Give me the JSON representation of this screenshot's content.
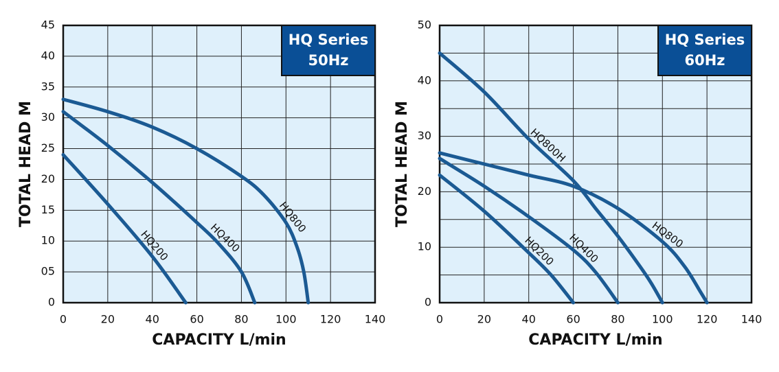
{
  "chart_data": [
    {
      "type": "line",
      "badge": [
        "HQ Series",
        "50Hz"
      ],
      "xlabel": "CAPACITY L/min",
      "ylabel": "TOTAL HEAD M",
      "xlim": [
        0,
        140
      ],
      "xticks": [
        0,
        20,
        40,
        60,
        80,
        100,
        120,
        140
      ],
      "ylim": [
        0,
        45
      ],
      "yticks": [
        0,
        {
          "value": 5,
          "label": "05"
        },
        10,
        15,
        20,
        25,
        30,
        35,
        40,
        45
      ],
      "grid": true,
      "minor_grid": false,
      "plot_color": "#dff0fb",
      "badge_color": "#0a4f96",
      "series": [
        {
          "name": "HQ800",
          "color": "#1b5a93",
          "x": [
            0,
            20,
            40,
            60,
            80,
            90,
            100,
            105,
            108,
            110
          ],
          "values": [
            33,
            31,
            28.5,
            25,
            20.5,
            17.5,
            13,
            9,
            5,
            0
          ]
        },
        {
          "name": "HQ400",
          "color": "#1b5a93",
          "x": [
            0,
            20,
            40,
            60,
            70,
            80,
            86
          ],
          "values": [
            31,
            25.5,
            19.5,
            13,
            9.5,
            5,
            0
          ]
        },
        {
          "name": "HQ200",
          "color": "#1b5a93",
          "x": [
            0,
            20,
            40,
            55
          ],
          "values": [
            24,
            16,
            7.5,
            0
          ]
        }
      ]
    },
    {
      "type": "line",
      "badge": [
        "HQ Series",
        "60Hz"
      ],
      "xlabel": "CAPACITY L/min",
      "ylabel": "TOTAL HEAD M",
      "xlim": [
        0,
        140
      ],
      "xticks": [
        0,
        20,
        40,
        60,
        80,
        100,
        120,
        140
      ],
      "ylim": [
        0,
        50
      ],
      "yticks": [
        0,
        10,
        20,
        30,
        40,
        50
      ],
      "grid": true,
      "minor_grid": true,
      "plot_color": "#dff0fb",
      "badge_color": "#0a4f96",
      "series": [
        {
          "name": "HQ800H",
          "color": "#1b5a93",
          "x": [
            0,
            20,
            40,
            60,
            70,
            80,
            90,
            95,
            100
          ],
          "values": [
            45,
            38,
            29.5,
            22,
            17,
            12,
            6.5,
            3.5,
            0
          ]
        },
        {
          "name": "HQ800",
          "color": "#1b5a93",
          "x": [
            0,
            20,
            40,
            60,
            80,
            100,
            110,
            117,
            120
          ],
          "values": [
            27,
            25,
            23,
            21,
            17,
            11,
            6.5,
            2,
            0
          ]
        },
        {
          "name": "HQ400",
          "color": "#1b5a93",
          "x": [
            0,
            20,
            40,
            60,
            70,
            80
          ],
          "values": [
            26,
            21,
            15.5,
            9.5,
            5.5,
            0
          ]
        },
        {
          "name": "HQ200",
          "color": "#1b5a93",
          "x": [
            0,
            20,
            40,
            50,
            60
          ],
          "values": [
            23,
            16.5,
            9,
            5,
            0
          ]
        }
      ]
    }
  ]
}
